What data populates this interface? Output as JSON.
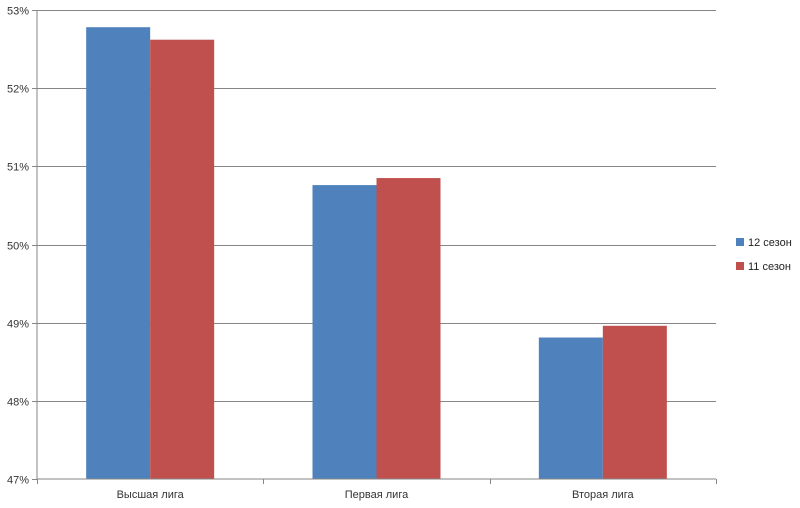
{
  "chart_data": {
    "type": "bar",
    "categories": [
      "Высшая лига",
      "Первая лига",
      "Вторая лига"
    ],
    "series": [
      {
        "name": "12 сезон",
        "values": [
          52.78,
          50.76,
          48.81
        ],
        "color": "#4F81BD"
      },
      {
        "name": "11 сезон",
        "values": [
          52.62,
          50.85,
          48.96
        ],
        "color": "#C0504D"
      }
    ],
    "ylim": [
      47,
      53
    ],
    "yticks": [
      47,
      48,
      49,
      50,
      51,
      52,
      53
    ],
    "ytick_labels": [
      "47%",
      "48%",
      "49%",
      "50%",
      "51%",
      "52%",
      "53%"
    ],
    "grid": true,
    "legend_position": "right",
    "title": "",
    "xlabel": "",
    "ylabel": ""
  }
}
